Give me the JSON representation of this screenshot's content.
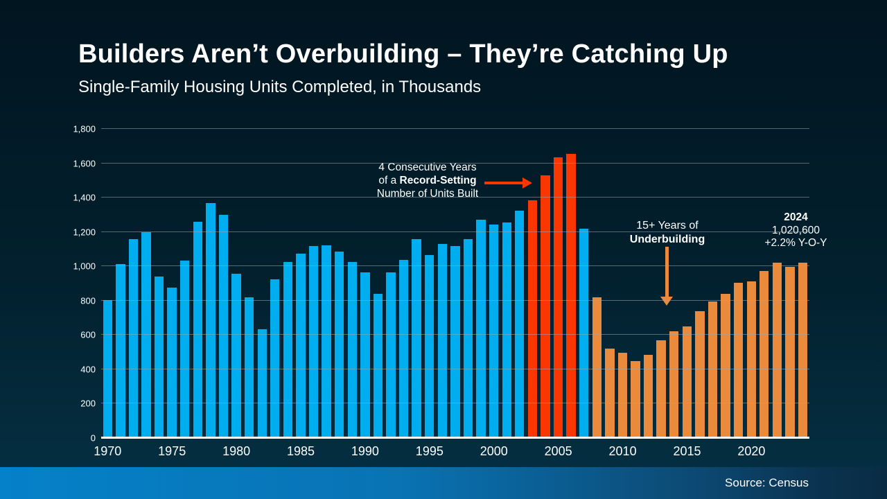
{
  "header": {
    "title": "Builders Aren’t Overbuilding – They’re Catching Up",
    "subtitle": "Single-Family Housing Units Completed, in Thousands"
  },
  "annotations": {
    "record": {
      "line1": "4 Consecutive Years",
      "line2_prefix": "of a ",
      "line2_bold": "Record-Setting",
      "line3": "Number of Units Built"
    },
    "underbuilding": {
      "line1": "15+ Years of",
      "line2_bold": "Underbuilding"
    },
    "callout_2024": {
      "year": "2024",
      "value": "1,020,600",
      "yoy": "+2.2% Y-O-Y"
    }
  },
  "footer": {
    "source": "Source: Census"
  },
  "colors": {
    "blue": "#00AEEF",
    "red": "#FA3700",
    "orange": "#E98A3C",
    "baseline": "#FFFFFF",
    "gridline": "#9EA8B0"
  },
  "chart_data": {
    "type": "bar",
    "title": "Single-Family Housing Units Completed, in Thousands",
    "x": [
      1970,
      1971,
      1972,
      1973,
      1974,
      1975,
      1976,
      1977,
      1978,
      1979,
      1980,
      1981,
      1982,
      1983,
      1984,
      1985,
      1986,
      1987,
      1988,
      1989,
      1990,
      1991,
      1992,
      1993,
      1994,
      1995,
      1996,
      1997,
      1998,
      1999,
      2000,
      2001,
      2002,
      2003,
      2004,
      2005,
      2006,
      2007,
      2008,
      2009,
      2010,
      2011,
      2012,
      2013,
      2014,
      2015,
      2016,
      2017,
      2018,
      2019,
      2020,
      2021,
      2022,
      2023,
      2024
    ],
    "values": [
      802,
      1014,
      1160,
      1197,
      940,
      875,
      1034,
      1258,
      1369,
      1301,
      957,
      819,
      632,
      924,
      1025,
      1072,
      1120,
      1123,
      1085,
      1026,
      966,
      838,
      964,
      1039,
      1160,
      1066,
      1129,
      1116,
      1160,
      1270,
      1242,
      1256,
      1325,
      1386,
      1531,
      1636,
      1654,
      1218,
      819,
      520,
      496,
      447,
      483,
      569,
      620,
      648,
      738,
      795,
      840,
      903,
      912,
      971,
      1021,
      998,
      1020.6
    ],
    "ylim": [
      0,
      1800
    ],
    "ytick_interval": 200,
    "ytick_labels": [
      "0",
      "200",
      "400",
      "600",
      "800",
      "1,000",
      "1,200",
      "1,400",
      "1,600",
      "1,800"
    ],
    "xtick_years": [
      1970,
      1975,
      1980,
      1985,
      1990,
      1995,
      2000,
      2005,
      2010,
      2015,
      2020
    ],
    "grid": "horizontal",
    "legend": "none",
    "series_color_rules": {
      "default_color": "blue",
      "record_years": [
        2003,
        2004,
        2005,
        2006
      ],
      "record_color": "red",
      "underbuilding_from_year": 2008,
      "underbuilding_color": "orange"
    }
  }
}
